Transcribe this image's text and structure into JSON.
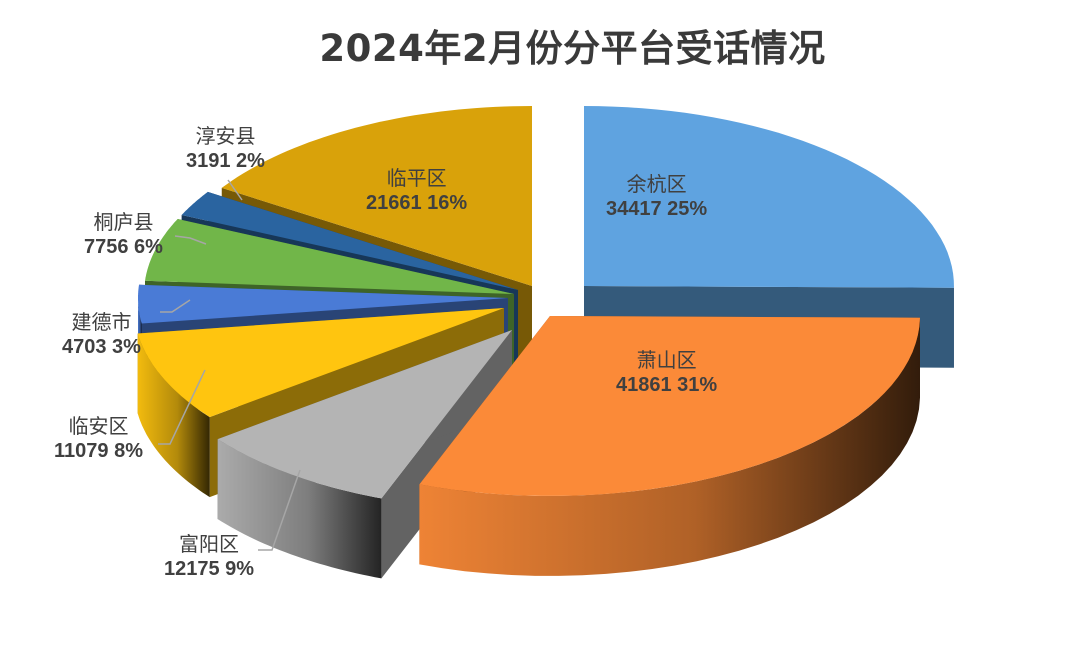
{
  "chart_data": {
    "type": "pie",
    "style": "3d-exploded",
    "title": "2024年2月份分平台受话情况",
    "start_angle_deg": 0,
    "direction": "clockwise",
    "slices": [
      {
        "name": "余杭区",
        "value": 34417,
        "percent": "25%",
        "color": "#5fa3e0"
      },
      {
        "name": "萧山区",
        "value": 41861,
        "percent": "31%",
        "color": "#fb8a38"
      },
      {
        "name": "富阳区",
        "value": 12175,
        "percent": "9%",
        "color": "#b4b4b4"
      },
      {
        "name": "临安区",
        "value": 11079,
        "percent": "8%",
        "color": "#ffc50f"
      },
      {
        "name": "建德市",
        "value": 4703,
        "percent": "3%",
        "color": "#4a7bd6"
      },
      {
        "name": "桐庐县",
        "value": 7756,
        "percent": "6%",
        "color": "#71b649"
      },
      {
        "name": "淳安县",
        "value": 3191,
        "percent": "2%",
        "color": "#2a64a0"
      },
      {
        "name": "临平区",
        "value": 21661,
        "percent": "16%",
        "color": "#d9a20a"
      }
    ],
    "legend": "none",
    "data_labels": "category name, value, percentage"
  },
  "labels": [
    {
      "name": "余杭区",
      "value_text": "34417 25%"
    },
    {
      "name": "萧山区",
      "value_text": "41861 31%"
    },
    {
      "name": "富阳区",
      "value_text": "12175 9%"
    },
    {
      "name": "临安区",
      "value_text": "11079 8%"
    },
    {
      "name": "建德市",
      "value_text": "4703 3%"
    },
    {
      "name": "桐庐县",
      "value_text": "7756 6%"
    },
    {
      "name": "淳安县",
      "value_text": "3191 2%"
    },
    {
      "name": "临平区",
      "value_text": "21661 16%"
    }
  ]
}
